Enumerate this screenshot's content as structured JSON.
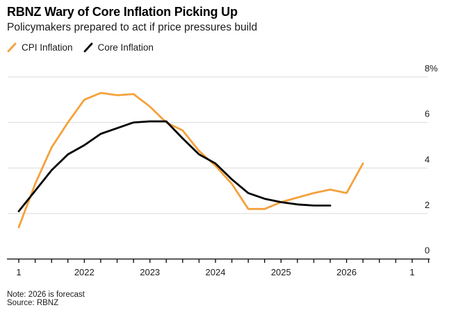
{
  "header": {
    "title": "RBNZ Wary of Core Inflation Picking Up",
    "subtitle": "Policymakers prepared to act if price pressures build"
  },
  "footer": {
    "note": "Note: 2026 is forecast",
    "source": "Source: RBNZ"
  },
  "colors": {
    "cpi_line": "#F5A13B",
    "core_line": "#000000",
    "grid": "#DADADA",
    "axis": "#000000",
    "text": "#1a1a1a"
  },
  "chart_data": {
    "type": "line",
    "title": "RBNZ Wary of Core Inflation Picking Up",
    "subtitle": "Policymakers prepared to act if price pressures build",
    "note": "2026 is forecast",
    "source": "RBNZ",
    "x_start": "2021-Q1",
    "x_frequency": "quarterly",
    "x_step_years": 0.25,
    "x_quarters": [
      "2021-Q1",
      "2021-Q2",
      "2021-Q3",
      "2021-Q4",
      "2022-Q1",
      "2022-Q2",
      "2022-Q3",
      "2022-Q4",
      "2023-Q1",
      "2023-Q2",
      "2023-Q3",
      "2023-Q4",
      "2024-Q1",
      "2024-Q2",
      "2024-Q3",
      "2024-Q4",
      "2025-Q1",
      "2025-Q2",
      "2025-Q3",
      "2025-Q4",
      "2026-Q1",
      "2026-Q2"
    ],
    "series": [
      {
        "name": "CPI Inflation",
        "color": "#F5A13B",
        "values": [
          1.4,
          3.3,
          4.9,
          6.0,
          7.0,
          7.3,
          7.2,
          7.25,
          6.7,
          6.0,
          5.65,
          4.75,
          4.1,
          3.3,
          2.2,
          2.2,
          2.5,
          2.7,
          2.9,
          3.05,
          2.9,
          4.2
        ]
      },
      {
        "name": "Core Inflation",
        "color": "#000000",
        "values": [
          2.1,
          3.0,
          3.9,
          4.6,
          5.0,
          5.5,
          5.75,
          6.0,
          6.05,
          6.05,
          5.3,
          4.6,
          4.2,
          3.5,
          2.9,
          2.65,
          2.5,
          2.4,
          2.35,
          2.35
        ]
      }
    ],
    "ylim": [
      0,
      8
    ],
    "y_ticks": [
      {
        "v": 8,
        "label": "8%"
      },
      {
        "v": 6,
        "label": "6"
      },
      {
        "v": 4,
        "label": "4"
      },
      {
        "v": 2,
        "label": "2"
      },
      {
        "v": 0,
        "label": "0"
      }
    ],
    "y_axis_side": "right",
    "x_tick_labels": [
      {
        "t": 0,
        "label": "1"
      },
      {
        "t": 1,
        "label": "2022"
      },
      {
        "t": 2,
        "label": "2023"
      },
      {
        "t": 3,
        "label": "2024"
      },
      {
        "t": 4,
        "label": "2025"
      },
      {
        "t": 5,
        "label": "2026"
      },
      {
        "t": 6,
        "label": "1"
      }
    ],
    "x_minor_tick_step_years": 0.25,
    "x_axis_end_years": 6.25,
    "grid": true,
    "legend_position": "top-left"
  }
}
